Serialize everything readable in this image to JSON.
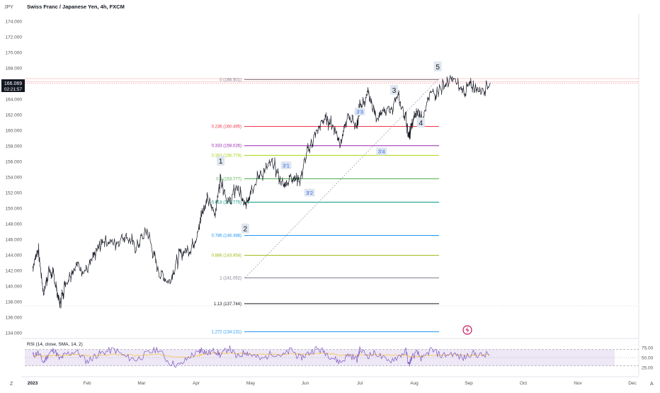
{
  "header": {
    "currency": "JPY",
    "title": "Swiss Franc / Japanese Yen, 4h, FXCM"
  },
  "price_badge": {
    "price": "166.069",
    "countdown": "02:21:57"
  },
  "corners": {
    "left": "Z",
    "right": "A"
  },
  "colors": {
    "candle": "#131722",
    "fib_0": "#787b86",
    "fib_0236": "#f23645",
    "fib_0333": "#9c27b0",
    "fib_0382": "#a5d610",
    "fib_05": "#4caf50",
    "fib_0618": "#089981",
    "fib_0786": "#2196f3",
    "fib_0886": "#9ebc1a",
    "fib_1": "#787b86",
    "fib_113": "#131722",
    "fib_1272": "#2196f3",
    "rsi_line": "#7e57c2",
    "rsi_ma": "#f7c948",
    "rsi_band": "#ede7f6",
    "wave_badge_bg": "#dfe6ee",
    "wave_minor_color": "#2962ff",
    "icon_accent": "#c2185b"
  },
  "chart_data": [
    {
      "type": "line",
      "title": "Swiss Franc / Japanese Yen, 4h, FXCM",
      "x_ticks": [
        "2023",
        "Feb",
        "Mar",
        "Apr",
        "May",
        "Jun",
        "Jul",
        "Aug",
        "Sep",
        "Oct",
        "Nov",
        "Dec"
      ],
      "y_ticks": [
        "174.000",
        "172.000",
        "170.000",
        "168.000",
        "166.000",
        "164.000",
        "162.000",
        "160.000",
        "158.000",
        "156.000",
        "154.000",
        "152.000",
        "150.000",
        "148.000",
        "146.000",
        "144.000",
        "142.000",
        "140.000",
        "138.000",
        "136.000",
        "134.000"
      ],
      "ylim": [
        133.5,
        175.0
      ],
      "x": [
        0.0,
        0.1,
        0.2,
        0.3,
        0.4,
        0.5,
        0.6,
        0.8,
        1.0,
        1.15,
        1.3,
        1.5,
        1.7,
        1.9,
        2.1,
        2.3,
        2.5,
        2.7,
        2.9,
        3.05,
        3.1,
        3.2,
        3.35,
        3.45,
        3.6,
        3.75,
        3.9,
        4.0,
        4.2,
        4.4,
        4.6,
        4.75,
        4.9,
        5.05,
        5.2,
        5.35,
        5.5,
        5.65,
        5.8,
        5.95,
        6.0,
        6.15,
        6.3,
        6.5,
        6.7,
        6.85,
        6.9,
        6.95,
        7.05,
        7.15,
        7.3,
        7.5,
        7.7,
        7.9,
        8.05,
        8.2,
        8.4
      ],
      "series": [
        {
          "values": [
            142.5,
            144.8,
            139.2,
            142.0,
            141.0,
            137.7,
            140.5,
            142.8,
            142.0,
            144.0,
            146.0,
            145.5,
            146.5,
            145.0,
            147.2,
            142.0,
            140.5,
            144.0,
            145.0,
            147.2,
            149.5,
            151.0,
            149.5,
            154.0,
            150.5,
            152.8,
            150.0,
            152.5,
            154.5,
            155.8,
            152.8,
            154.2,
            153.5,
            157.5,
            159.5,
            161.5,
            160.8,
            158.5,
            162.0,
            160.5,
            163.0,
            164.5,
            162.0,
            162.2,
            164.2,
            161.5,
            159.0,
            160.5,
            162.5,
            161.7,
            164.5,
            165.5,
            166.5,
            165.0,
            165.8,
            165.2,
            166.1
          ]
        }
      ],
      "fib_levels": [
        {
          "ratio": 0,
          "value": 166.501,
          "label": "0 (166.501)"
        },
        {
          "ratio": 0.236,
          "value": 160.495,
          "label": "0.236 (160.495)"
        },
        {
          "ratio": 0.333,
          "value": 158.026,
          "label": "0.333 (158.026)"
        },
        {
          "ratio": 0.382,
          "value": 156.779,
          "label": "0.382 (156.779)"
        },
        {
          "ratio": 0.5,
          "value": 153.777,
          "label": "0.5 (153.777)"
        },
        {
          "ratio": 0.618,
          "value": 150.775,
          "label": "0.618 (150.775)"
        },
        {
          "ratio": 0.786,
          "value": 146.498,
          "label": "0.786 (146.498)"
        },
        {
          "ratio": 0.886,
          "value": 143.954,
          "label": "0.886 (143.954)"
        },
        {
          "ratio": 1,
          "value": 141.052,
          "label": "1 (141.052)"
        },
        {
          "ratio": 1.13,
          "value": 137.744,
          "label": "1.13 (137.744)"
        },
        {
          "ratio": 1.272,
          "value": 134.131,
          "label": "1.272 (134.131)"
        }
      ],
      "current_price": 166.069,
      "wave_labels": [
        {
          "text": "1",
          "x": 3.45,
          "y": 156.1,
          "style": "major"
        },
        {
          "text": "2",
          "x": 3.9,
          "y": 147.4,
          "style": "major"
        },
        {
          "text": "3",
          "x": 6.63,
          "y": 165.2,
          "style": "major"
        },
        {
          "text": "4",
          "x": 7.12,
          "y": 161.0,
          "style": "major"
        },
        {
          "text": "5",
          "x": 7.43,
          "y": 168.2,
          "style": "major"
        },
        {
          "text": "3'1",
          "x": 4.65,
          "y": 155.5,
          "style": "minor"
        },
        {
          "text": "3'2",
          "x": 5.08,
          "y": 152.0,
          "style": "minor"
        },
        {
          "text": "3'3",
          "x": 6.0,
          "y": 162.4,
          "style": "minor"
        },
        {
          "text": "3'4",
          "x": 6.4,
          "y": 157.3,
          "style": "minor"
        }
      ],
      "trend_line": {
        "x": [
          3.9,
          7.43
        ],
        "y": [
          141.1,
          166.5
        ]
      }
    },
    {
      "type": "line",
      "title": "RSI (14, close, SMA, 14, 2)",
      "y_ticks": [
        "75.00",
        "50.00",
        "25.00"
      ],
      "ylim": [
        15,
        85
      ],
      "levels": [
        70,
        50,
        30
      ],
      "series": [
        {
          "values": [
            55,
            62,
            38,
            60,
            70,
            45,
            58,
            66,
            40,
            55,
            63,
            70,
            52,
            45,
            60,
            72,
            38,
            30,
            55,
            62,
            72,
            60,
            68,
            55,
            75,
            50,
            65,
            58,
            45,
            62,
            55,
            70,
            48,
            60,
            72,
            65,
            50,
            38,
            58,
            45,
            70,
            55,
            62,
            40,
            52,
            66,
            30,
            50,
            62,
            45,
            70,
            55,
            60,
            48,
            62,
            55,
            58
          ]
        },
        {
          "values": [
            55,
            55,
            53,
            54,
            56,
            55,
            56,
            57,
            55,
            55,
            56,
            58,
            57,
            55,
            56,
            58,
            55,
            52,
            53,
            55,
            58,
            59,
            61,
            60,
            62,
            60,
            61,
            60,
            58,
            59,
            58,
            60,
            58,
            58,
            60,
            61,
            59,
            56,
            56,
            55,
            57,
            57,
            58,
            56,
            55,
            57,
            53,
            52,
            54,
            53,
            56,
            56,
            57,
            55,
            56,
            56,
            57
          ]
        }
      ]
    }
  ]
}
